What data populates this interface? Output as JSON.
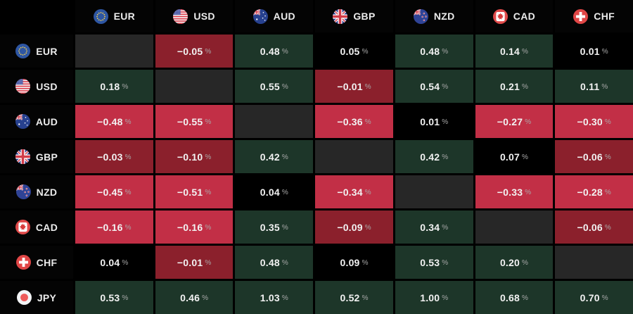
{
  "chart_data": {
    "type": "heatmap",
    "title": "",
    "unit": "%",
    "columns": [
      "EUR",
      "USD",
      "AUD",
      "GBP",
      "NZD",
      "CAD",
      "CHF"
    ],
    "rows": [
      "EUR",
      "USD",
      "AUD",
      "GBP",
      "NZD",
      "CAD",
      "CHF",
      "JPY"
    ],
    "values": [
      [
        null,
        -0.05,
        0.48,
        0.05,
        0.48,
        0.14,
        0.01
      ],
      [
        0.18,
        null,
        0.55,
        -0.01,
        0.54,
        0.21,
        0.11
      ],
      [
        -0.48,
        -0.55,
        null,
        -0.36,
        0.01,
        -0.27,
        -0.3
      ],
      [
        -0.03,
        -0.1,
        0.42,
        null,
        0.42,
        0.07,
        -0.06
      ],
      [
        -0.45,
        -0.51,
        0.04,
        -0.34,
        null,
        -0.33,
        -0.28
      ],
      [
        -0.16,
        -0.16,
        0.35,
        -0.09,
        0.34,
        null,
        -0.06
      ],
      [
        0.04,
        -0.01,
        0.48,
        0.09,
        0.53,
        0.2,
        null
      ],
      [
        0.53,
        0.46,
        1.03,
        0.52,
        1.0,
        0.68,
        0.7
      ]
    ],
    "legend_position": "none",
    "color_rule": "positive>0.10 green, positive<=0.10 black, negative>=-0.10 dark-maroon, negative<-0.10 bright-red, diagonal gray"
  },
  "display": {
    "percent_suffix": "%",
    "minus_sign": "−",
    "decimals": 2
  },
  "icons": {
    "EUR": "eur-flag-icon",
    "USD": "usd-flag-icon",
    "AUD": "aud-flag-icon",
    "GBP": "gbp-flag-icon",
    "NZD": "nzd-flag-icon",
    "CAD": "cad-flag-icon",
    "CHF": "chf-flag-icon",
    "JPY": "jpy-flag-icon"
  },
  "colors": {
    "background": "#000000",
    "diagonal_cell": "#272727",
    "positive_cell": "#1d3629",
    "positive_weak_cell": "#000000",
    "negative_cell": "#c22f46",
    "negative_weak_cell": "#8b202c",
    "value_text": "#f2f2f2",
    "suffix_text": "#a9a9a9",
    "header_text": "#ececec"
  }
}
